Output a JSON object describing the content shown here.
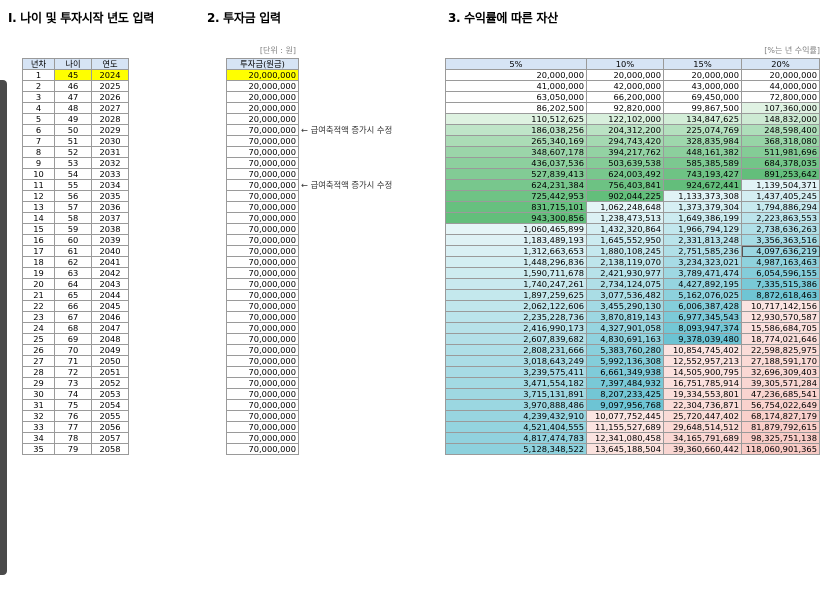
{
  "titles": {
    "section1": "I. 나이 및 투자시작 년도 입력",
    "section2": "2. 투자금 입력",
    "section3": "3. 수익률에 따른 자산"
  },
  "notes": {
    "unit": "[단위 : 원]",
    "rate_unit": "[%는 년 수익률]"
  },
  "table1": {
    "headers": [
      "년차",
      "나이",
      "연도"
    ],
    "rows": [
      [
        "1",
        "45",
        "2024"
      ],
      [
        "2",
        "46",
        "2025"
      ],
      [
        "3",
        "47",
        "2026"
      ],
      [
        "4",
        "48",
        "2027"
      ],
      [
        "5",
        "49",
        "2028"
      ],
      [
        "6",
        "50",
        "2029"
      ],
      [
        "7",
        "51",
        "2030"
      ],
      [
        "8",
        "52",
        "2031"
      ],
      [
        "9",
        "53",
        "2032"
      ],
      [
        "10",
        "54",
        "2033"
      ],
      [
        "11",
        "55",
        "2034"
      ],
      [
        "12",
        "56",
        "2035"
      ],
      [
        "13",
        "57",
        "2036"
      ],
      [
        "14",
        "58",
        "2037"
      ],
      [
        "15",
        "59",
        "2038"
      ],
      [
        "16",
        "60",
        "2039"
      ],
      [
        "17",
        "61",
        "2040"
      ],
      [
        "18",
        "62",
        "2041"
      ],
      [
        "19",
        "63",
        "2042"
      ],
      [
        "20",
        "64",
        "2043"
      ],
      [
        "21",
        "65",
        "2044"
      ],
      [
        "22",
        "66",
        "2045"
      ],
      [
        "23",
        "67",
        "2046"
      ],
      [
        "24",
        "68",
        "2047"
      ],
      [
        "25",
        "69",
        "2048"
      ],
      [
        "26",
        "70",
        "2049"
      ],
      [
        "27",
        "71",
        "2050"
      ],
      [
        "28",
        "72",
        "2051"
      ],
      [
        "29",
        "73",
        "2052"
      ],
      [
        "30",
        "74",
        "2053"
      ],
      [
        "31",
        "75",
        "2054"
      ],
      [
        "32",
        "76",
        "2055"
      ],
      [
        "33",
        "77",
        "2056"
      ],
      [
        "34",
        "78",
        "2057"
      ],
      [
        "35",
        "79",
        "2058"
      ]
    ]
  },
  "table2": {
    "header": "투자금(원금)",
    "values": [
      "20,000,000",
      "20,000,000",
      "20,000,000",
      "20,000,000",
      "20,000,000",
      "70,000,000",
      "70,000,000",
      "70,000,000",
      "70,000,000",
      "70,000,000",
      "70,000,000",
      "70,000,000",
      "70,000,000",
      "70,000,000",
      "70,000,000",
      "70,000,000",
      "70,000,000",
      "70,000,000",
      "70,000,000",
      "70,000,000",
      "70,000,000",
      "70,000,000",
      "70,000,000",
      "70,000,000",
      "70,000,000",
      "70,000,000",
      "70,000,000",
      "70,000,000",
      "70,000,000",
      "70,000,000",
      "70,000,000",
      "70,000,000",
      "70,000,000",
      "70,000,000",
      "70,000,000"
    ],
    "annotations": [
      "",
      "",
      "",
      "",
      "",
      "← 급여축적액 증가시 수정",
      "",
      "",
      "",
      "",
      "← 급여축적액 증가시 수정",
      "",
      "",
      "",
      "",
      "",
      "",
      "",
      "",
      "",
      "",
      "",
      "",
      "",
      "",
      "",
      "",
      "",
      "",
      "",
      "",
      "",
      "",
      "",
      ""
    ]
  },
  "table3": {
    "headers": [
      "5%",
      "10%",
      "15%",
      "20%"
    ],
    "rows": [
      [
        "20,000,000",
        "20,000,000",
        "20,000,000",
        "20,000,000"
      ],
      [
        "41,000,000",
        "42,000,000",
        "43,000,000",
        "44,000,000"
      ],
      [
        "63,050,000",
        "66,200,000",
        "69,450,000",
        "72,800,000"
      ],
      [
        "86,202,500",
        "92,820,000",
        "99,867,500",
        "107,360,000"
      ],
      [
        "110,512,625",
        "122,102,000",
        "134,847,625",
        "148,832,000"
      ],
      [
        "186,038,256",
        "204,312,200",
        "225,074,769",
        "248,598,400"
      ],
      [
        "265,340,169",
        "294,743,420",
        "328,835,984",
        "368,318,080"
      ],
      [
        "348,607,178",
        "394,217,762",
        "448,161,382",
        "511,981,696"
      ],
      [
        "436,037,536",
        "503,639,538",
        "585,385,589",
        "684,378,035"
      ],
      [
        "527,839,413",
        "624,003,492",
        "743,193,427",
        "891,253,642"
      ],
      [
        "624,231,384",
        "756,403,841",
        "924,672,441",
        "1,139,504,371"
      ],
      [
        "725,442,953",
        "902,044,225",
        "1,133,373,308",
        "1,437,405,245"
      ],
      [
        "831,715,101",
        "1,062,248,648",
        "1,373,379,304",
        "1,794,886,294"
      ],
      [
        "943,300,856",
        "1,238,473,513",
        "1,649,386,199",
        "2,223,863,553"
      ],
      [
        "1,060,465,899",
        "1,432,320,864",
        "1,966,794,129",
        "2,738,636,263"
      ],
      [
        "1,183,489,193",
        "1,645,552,950",
        "2,331,813,248",
        "3,356,363,516"
      ],
      [
        "1,312,663,653",
        "1,880,108,245",
        "2,751,585,236",
        "4,097,636,219"
      ],
      [
        "1,448,296,836",
        "2,138,119,070",
        "3,234,323,021",
        "4,987,163,463"
      ],
      [
        "1,590,711,678",
        "2,421,930,977",
        "3,789,471,474",
        "6,054,596,155"
      ],
      [
        "1,740,247,261",
        "2,734,124,075",
        "4,427,892,195",
        "7,335,515,386"
      ],
      [
        "1,897,259,625",
        "3,077,536,482",
        "5,162,076,025",
        "8,872,618,463"
      ],
      [
        "2,062,122,606",
        "3,455,290,130",
        "6,006,387,428",
        "10,717,142,156"
      ],
      [
        "2,235,228,736",
        "3,870,819,143",
        "6,977,345,543",
        "12,930,570,587"
      ],
      [
        "2,416,990,173",
        "4,327,901,058",
        "8,093,947,374",
        "15,586,684,705"
      ],
      [
        "2,607,839,682",
        "4,830,691,163",
        "9,378,039,480",
        "18,774,021,646"
      ],
      [
        "2,808,231,666",
        "5,383,760,280",
        "10,854,745,402",
        "22,598,825,975"
      ],
      [
        "3,018,643,249",
        "5,992,136,308",
        "12,552,957,213",
        "27,188,591,170"
      ],
      [
        "3,239,575,411",
        "6,661,349,938",
        "14,505,900,795",
        "32,696,309,403"
      ],
      [
        "3,471,554,182",
        "7,397,484,932",
        "16,751,785,914",
        "39,305,571,284"
      ],
      [
        "3,715,131,891",
        "8,207,233,425",
        "19,334,553,801",
        "47,236,685,541"
      ],
      [
        "3,970,888,486",
        "9,097,956,768",
        "22,304,736,871",
        "56,754,022,649"
      ],
      [
        "4,239,432,910",
        "10,077,752,445",
        "25,720,447,402",
        "68,174,827,179"
      ],
      [
        "4,521,404,555",
        "11,155,527,689",
        "29,648,514,512",
        "81,879,792,615"
      ],
      [
        "4,817,474,783",
        "12,341,080,458",
        "34,165,791,689",
        "98,325,751,138"
      ],
      [
        "5,128,348,522",
        "13,645,188,504",
        "39,360,660,442",
        "118,060,901,365"
      ]
    ]
  },
  "colors": {
    "header_bg": "#d6e4f5",
    "yellow": "#ffff00",
    "green_high": "#63be7b",
    "teal_low": "#68c2d2",
    "pink_high": "#f8c9c4",
    "light": "#e8f6f8"
  }
}
